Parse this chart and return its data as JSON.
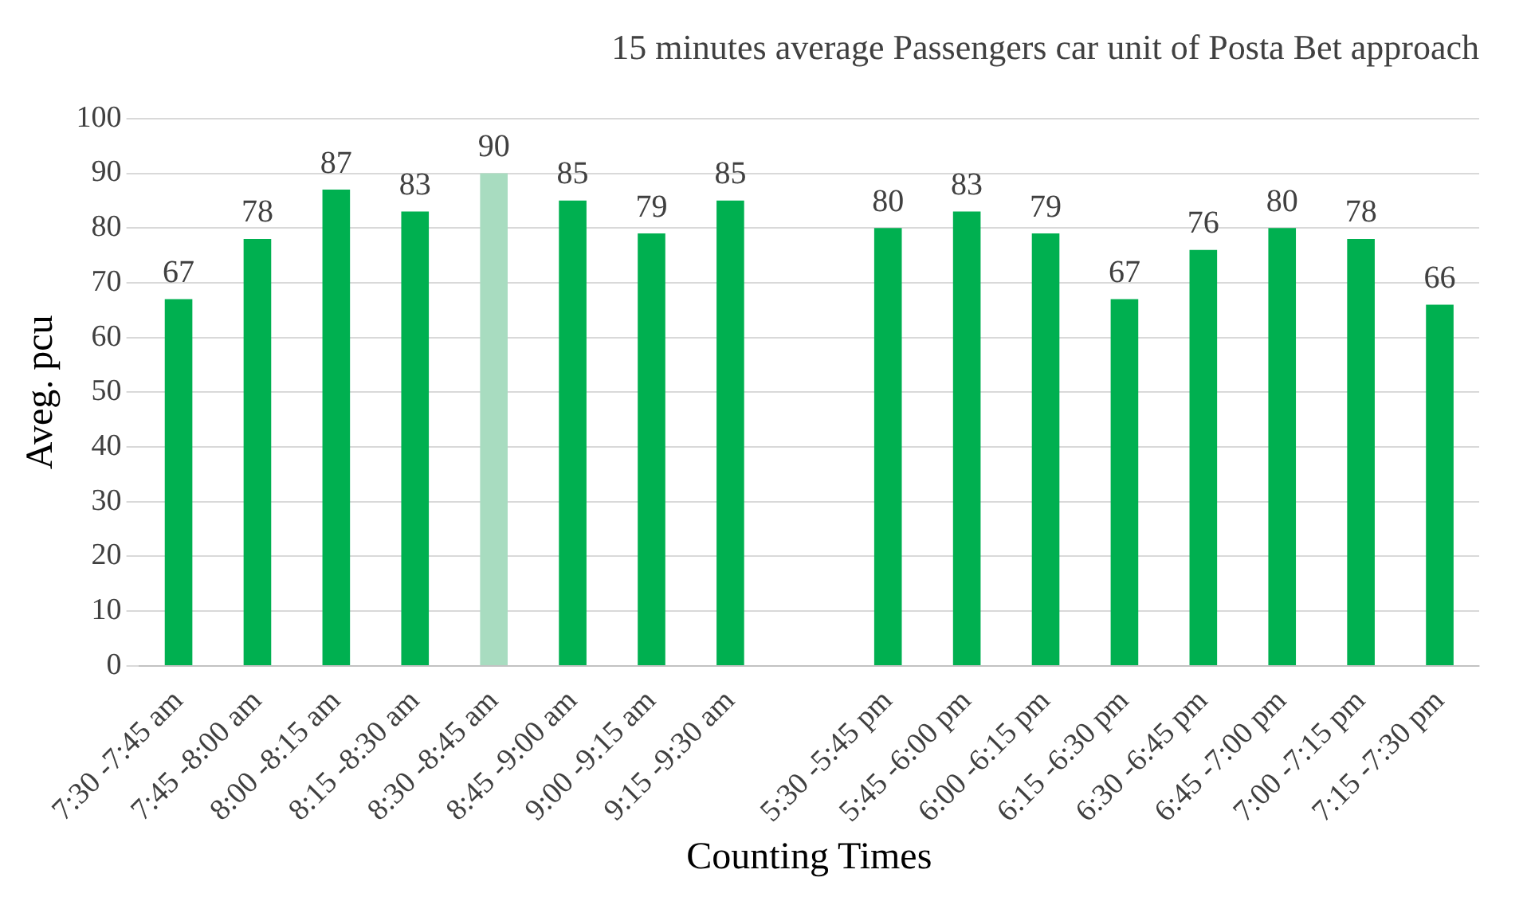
{
  "chart_data": {
    "type": "bar",
    "title": "15 minutes average Passengers car unit of Posta Bet approach",
    "xlabel": "Counting Times",
    "ylabel": "Aveg. pcu",
    "categories": [
      "7:30 -7:45 am",
      "7:45 -8:00 am",
      "8:00 -8:15 am",
      "8:15 -8:30 am",
      "8:30 -8:45 am",
      "8:45 -9:00 am",
      "9:00 -9:15 am",
      "9:15 -9:30 am",
      null,
      "5:30 -5:45 pm",
      "5:45 -6:00 pm",
      "6:00 -6:15 pm",
      "6:15 -6:30 pm",
      "6:30 -6:45 pm",
      "6:45 -7:00 pm",
      "7:00 -7:15 pm",
      "7:15 -7:30 pm"
    ],
    "values": [
      67,
      78,
      87,
      83,
      90,
      85,
      79,
      85,
      null,
      80,
      83,
      79,
      67,
      76,
      80,
      78,
      66
    ],
    "colors": [
      "#00b050",
      "#00b050",
      "#00b050",
      "#00b050",
      "#a8dcc0",
      "#00b050",
      "#00b050",
      "#00b050",
      "#00b050",
      "#00b050",
      "#00b050",
      "#00b050",
      "#00b050",
      "#00b050",
      "#00b050",
      "#00b050",
      "#00b050"
    ],
    "ylim": [
      0,
      100
    ],
    "yticks": [
      0,
      10,
      20,
      30,
      40,
      50,
      60,
      70,
      80,
      90,
      100
    ],
    "grid": "y",
    "legend": false,
    "data_labels": true
  }
}
